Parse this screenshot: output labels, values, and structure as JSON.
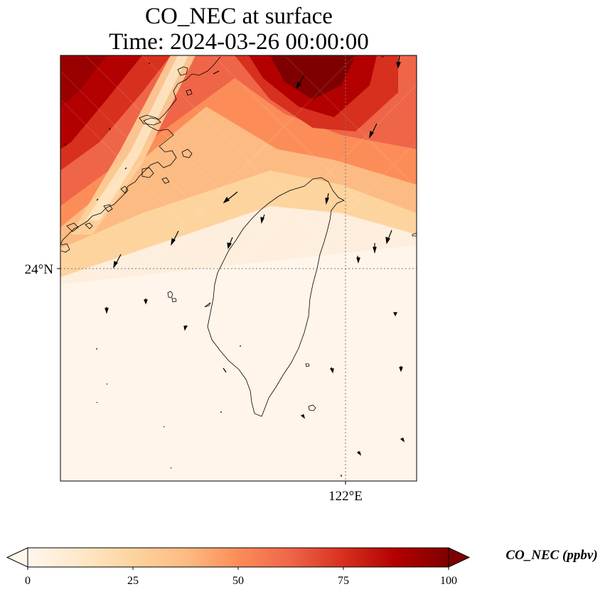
{
  "title": {
    "line1": "CO_NEC at surface",
    "line2": "Time: 2024-03-26 00:00:00"
  },
  "map": {
    "lat_label": "24°N",
    "lon_label": "122°E",
    "field_colors": [
      "#fff5eb",
      "#fee6ce",
      "#fdd0a2",
      "#fdae6b",
      "#fd8d3c",
      "#f16913",
      "#d94801",
      "#a50f15",
      "#67000d"
    ]
  },
  "colorbar": {
    "label": "CO_NEC (ppbv)",
    "ticks": [
      "0",
      "25",
      "50",
      "75",
      "100"
    ],
    "min": 0,
    "max": 100,
    "extend": "both",
    "colormap": "OrRd"
  }
}
